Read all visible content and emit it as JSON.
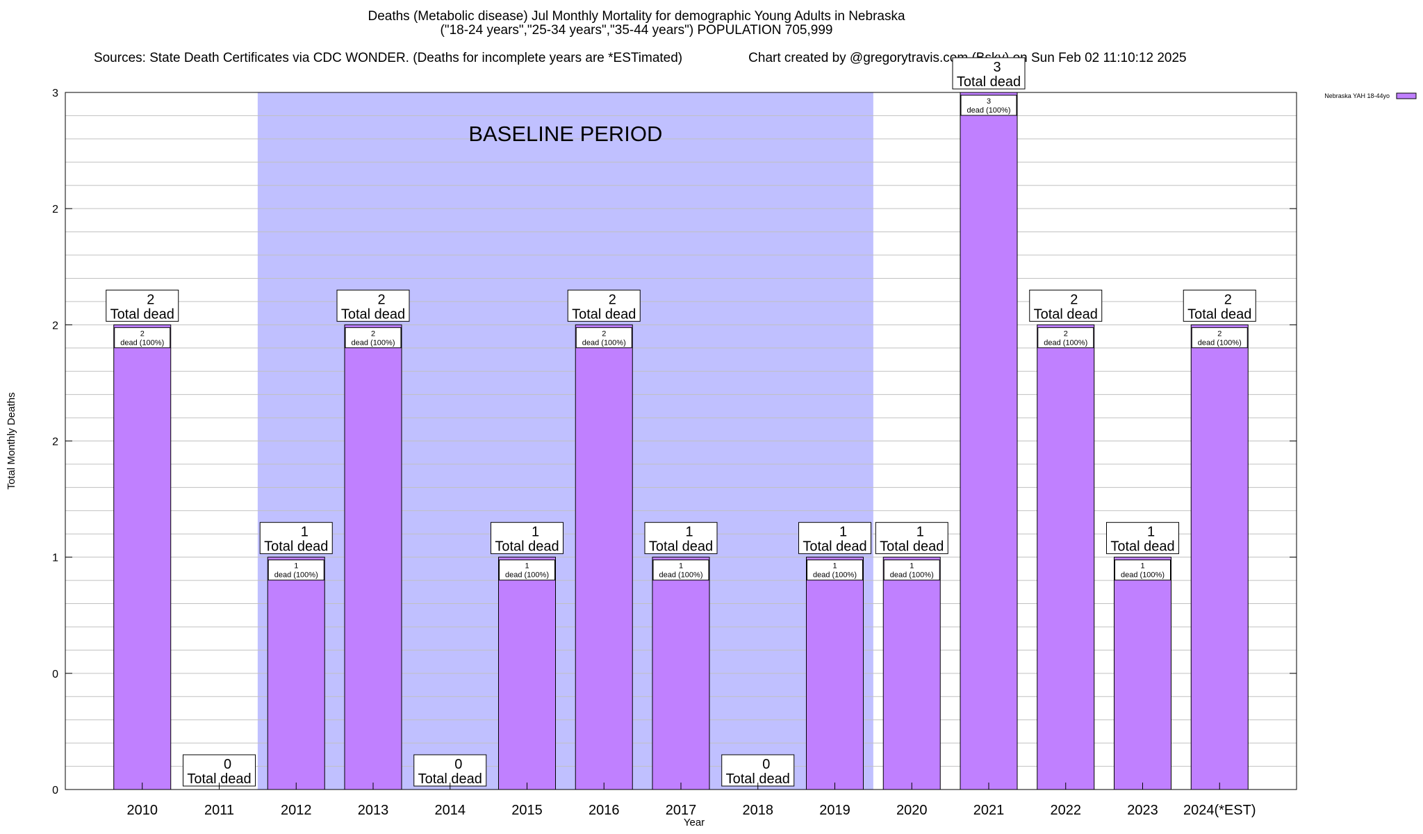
{
  "chart_data": {
    "type": "bar",
    "title": "Deaths (Metabolic disease) Jul Monthly Mortality for demographic Young Adults in Nebraska",
    "subtitle": "(\"18-24 years\",\"25-34 years\",\"35-44 years\") POPULATION 705,999",
    "sources": "Sources: State Death Certificates via CDC WONDER. (Deaths for incomplete years are *ESTimated)",
    "credit": "Chart created by @gregorytravis.com (Bsky) on Sun Feb 02 11:10:12 2025",
    "xlabel": "Year",
    "ylabel": "Total Monthly Deaths",
    "ylim": [
      0,
      3
    ],
    "y_ticks": [
      0,
      0.5,
      1,
      1.5,
      2,
      2.5,
      3
    ],
    "y_tick_labels": [
      "0",
      "0",
      "1",
      "2",
      "2",
      "2",
      "3"
    ],
    "categories": [
      "2010",
      "2011",
      "2012",
      "2013",
      "2014",
      "2015",
      "2016",
      "2017",
      "2018",
      "2019",
      "2020",
      "2021",
      "2022",
      "2023",
      "2024(*EST)"
    ],
    "values": [
      2,
      0,
      1,
      2,
      0,
      1,
      2,
      1,
      0,
      1,
      1,
      3,
      2,
      1,
      2
    ],
    "series": [
      {
        "name": "Nebraska YAH 18-44yo",
        "values": [
          2,
          0,
          1,
          2,
          0,
          1,
          2,
          1,
          0,
          1,
          1,
          3,
          2,
          1,
          2
        ]
      }
    ],
    "total_label": "Total dead",
    "inner_label_suffix": "dead (100%)",
    "baseline": {
      "label": "BASELINE PERIOD",
      "start": "2012",
      "end": "2019"
    },
    "legend": {
      "position": "top-right",
      "label": "Nebraska YAH 18-44yo"
    },
    "colors": {
      "bar": "#c080ff",
      "baseline_shade": "#c0c0ff",
      "grid": "#c0c0c0"
    },
    "grid": true
  }
}
